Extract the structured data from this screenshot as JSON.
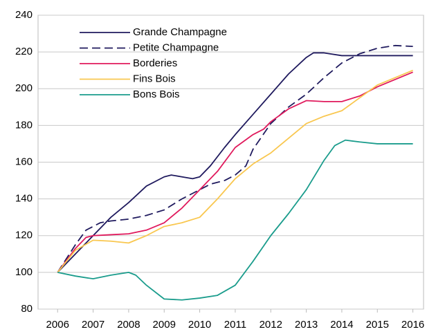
{
  "chart_data": {
    "type": "line",
    "xlim": [
      2005.45,
      2016.3
    ],
    "xticks": [
      2006,
      2007,
      2008,
      2009,
      2010,
      2011,
      2012,
      2013,
      2014,
      2015,
      2016
    ],
    "ylim": [
      80,
      240
    ],
    "yticks": [
      80,
      100,
      120,
      140,
      160,
      180,
      200,
      220,
      240
    ],
    "grid": true,
    "legend": "top-left",
    "series": [
      {
        "name": "Grande Champagne",
        "color": "#1f1a5e",
        "style": "solid",
        "x": [
          2006,
          2007,
          2007.5,
          2008,
          2008.5,
          2009,
          2009.2,
          2009.5,
          2009.8,
          2010,
          2010.3,
          2010.7,
          2011,
          2011.5,
          2012,
          2012.5,
          2013,
          2013.2,
          2013.5,
          2014,
          2015,
          2016
        ],
        "values": [
          100,
          120,
          130,
          138,
          147,
          152,
          153,
          152,
          151,
          152,
          158,
          168,
          175,
          186,
          197,
          208,
          217,
          219.5,
          219.5,
          218,
          218,
          218
        ]
      },
      {
        "name": "Petite Champagne",
        "color": "#1f1a5e",
        "style": "dashed",
        "x": [
          2006,
          2006.5,
          2006.8,
          2007.2,
          2007.5,
          2008,
          2008.5,
          2009,
          2009.5,
          2010,
          2010.3,
          2010.7,
          2011,
          2011.3,
          2011.5,
          2012,
          2012.5,
          2013,
          2013.5,
          2014,
          2014.5,
          2015,
          2015.5,
          2016
        ],
        "values": [
          100,
          115,
          123,
          127,
          128,
          129,
          131,
          134,
          140,
          145,
          148,
          150,
          153,
          158,
          167,
          181,
          190,
          197,
          206,
          214,
          219,
          222,
          223.5,
          223
        ]
      },
      {
        "name": "Borderies",
        "color": "#e0195c",
        "style": "solid",
        "x": [
          2006,
          2006.5,
          2006.8,
          2007,
          2007.5,
          2008,
          2008.5,
          2009,
          2009.5,
          2010,
          2010.5,
          2011,
          2011.5,
          2011.8,
          2012,
          2012.5,
          2013,
          2013.5,
          2014,
          2014.5,
          2015,
          2015.5,
          2016
        ],
        "values": [
          100,
          113,
          119,
          120,
          120.5,
          121,
          123,
          127,
          135,
          145,
          155,
          168,
          175,
          178,
          182,
          189,
          193.5,
          193,
          193,
          196,
          201,
          205,
          209
        ]
      },
      {
        "name": "Fins Bois",
        "color": "#f9c74f",
        "style": "solid",
        "x": [
          2006,
          2006.5,
          2007,
          2007.5,
          2008,
          2008.5,
          2009,
          2009.5,
          2010,
          2010.5,
          2011,
          2011.5,
          2012,
          2012.5,
          2013,
          2013.5,
          2014,
          2014.5,
          2015,
          2015.5,
          2016
        ],
        "values": [
          100,
          112,
          117.5,
          117,
          116,
          120,
          125,
          127,
          130,
          140,
          151,
          159,
          165,
          173,
          181,
          185,
          188,
          195,
          202,
          206,
          210
        ]
      },
      {
        "name": "Bons Bois",
        "color": "#1a9c8c",
        "style": "solid",
        "x": [
          2006,
          2006.5,
          2007,
          2007.5,
          2008,
          2008.2,
          2008.5,
          2009,
          2009.5,
          2010,
          2010.5,
          2011,
          2011.5,
          2012,
          2012.5,
          2013,
          2013.5,
          2013.8,
          2014.1,
          2014.5,
          2015,
          2016
        ],
        "values": [
          100,
          98,
          96.5,
          98.5,
          100,
          98.5,
          93,
          85.5,
          85,
          86,
          87.5,
          93,
          106,
          120,
          132,
          145,
          161,
          169,
          172,
          171,
          170,
          170
        ]
      }
    ]
  }
}
